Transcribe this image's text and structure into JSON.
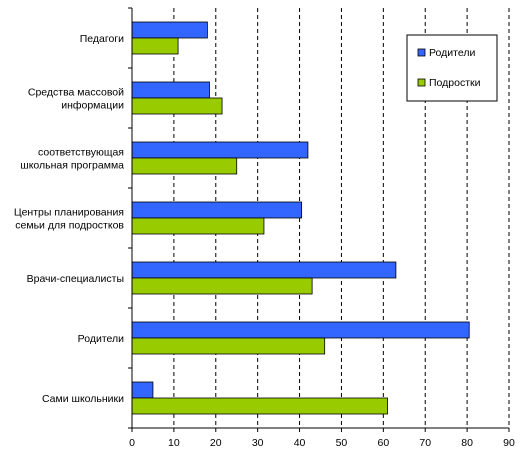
{
  "chart_data": {
    "type": "bar",
    "orientation": "horizontal",
    "categories": [
      [
        "Педагоги"
      ],
      [
        "Средства массовой",
        "информации"
      ],
      [
        "соответствующая",
        "школьная программа"
      ],
      [
        "Центры планирования",
        "семьи для подростков"
      ],
      [
        "Врачи-специалисты"
      ],
      [
        "Родители"
      ],
      [
        "Сами школьники"
      ]
    ],
    "series": [
      {
        "name": "Родители",
        "color": "#3366ff",
        "values": [
          18,
          18.5,
          42,
          40.5,
          63,
          80.5,
          5
        ]
      },
      {
        "name": "Подростки",
        "color": "#99cc00",
        "values": [
          11,
          21.5,
          25,
          31.5,
          43,
          46,
          61
        ]
      }
    ],
    "xlim": [
      0,
      90
    ],
    "xticks": [
      0,
      10,
      20,
      30,
      40,
      50,
      60,
      70,
      80,
      90
    ],
    "grid": "vertical dashed",
    "legend_position": "top-right",
    "title": "",
    "xlabel": "",
    "ylabel": ""
  }
}
